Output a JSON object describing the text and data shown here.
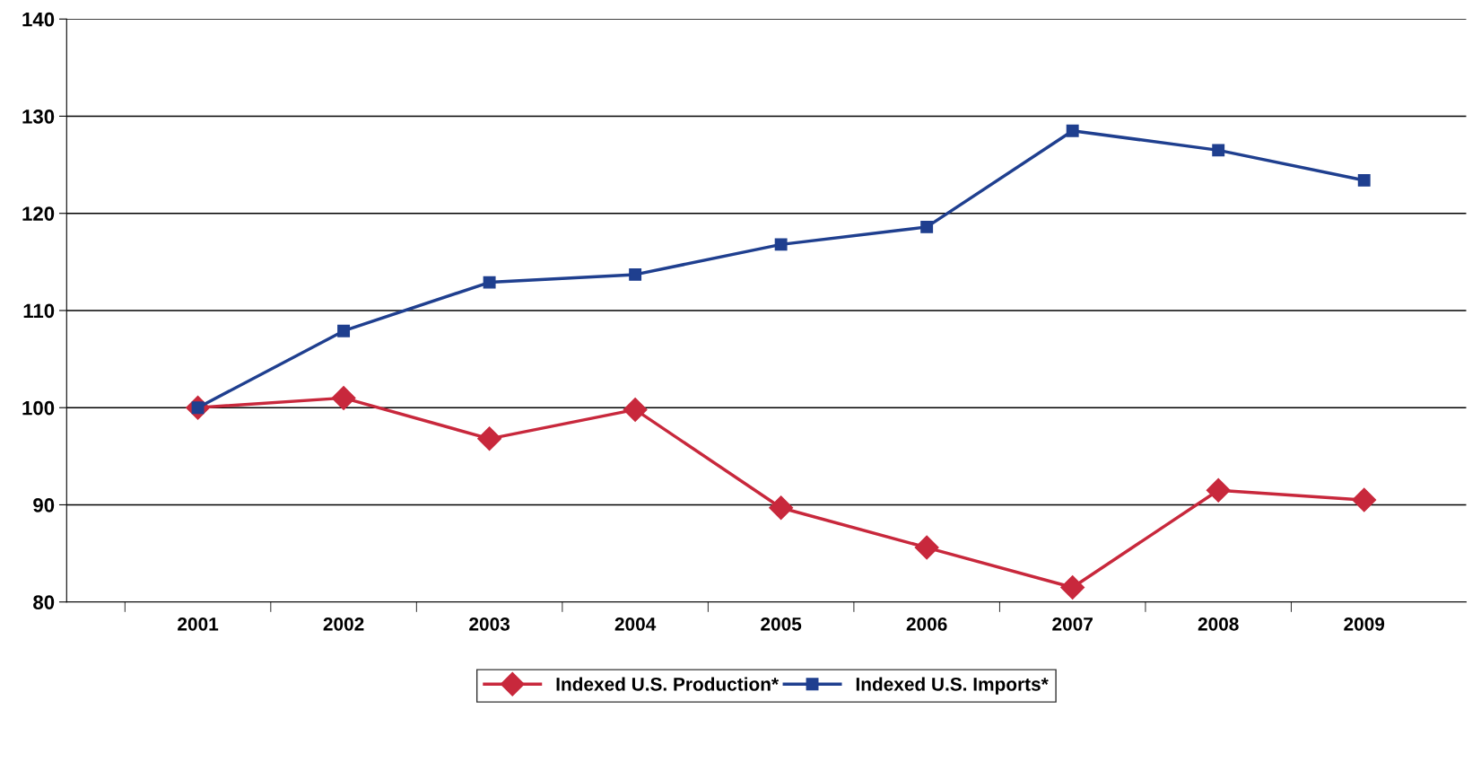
{
  "chart_data": {
    "type": "line",
    "categories": [
      "2001",
      "2002",
      "2003",
      "2004",
      "2005",
      "2006",
      "2007",
      "2008",
      "2009"
    ],
    "series": [
      {
        "name": "Indexed U.S. Production*",
        "color": "#c8283c",
        "marker": "diamond",
        "values": [
          100,
          101.0,
          96.8,
          99.8,
          89.7,
          85.6,
          81.5,
          91.5,
          90.5
        ]
      },
      {
        "name": "Indexed U.S. Imports*",
        "color": "#1f3f8f",
        "marker": "square",
        "values": [
          100,
          107.9,
          112.9,
          113.7,
          116.8,
          118.6,
          128.5,
          126.5,
          123.4
        ]
      }
    ],
    "ylim": [
      80,
      140
    ],
    "yticks": [
      80,
      90,
      100,
      110,
      120,
      130,
      140
    ],
    "grid": "y",
    "legend": "bottom",
    "line_style": "solid"
  }
}
